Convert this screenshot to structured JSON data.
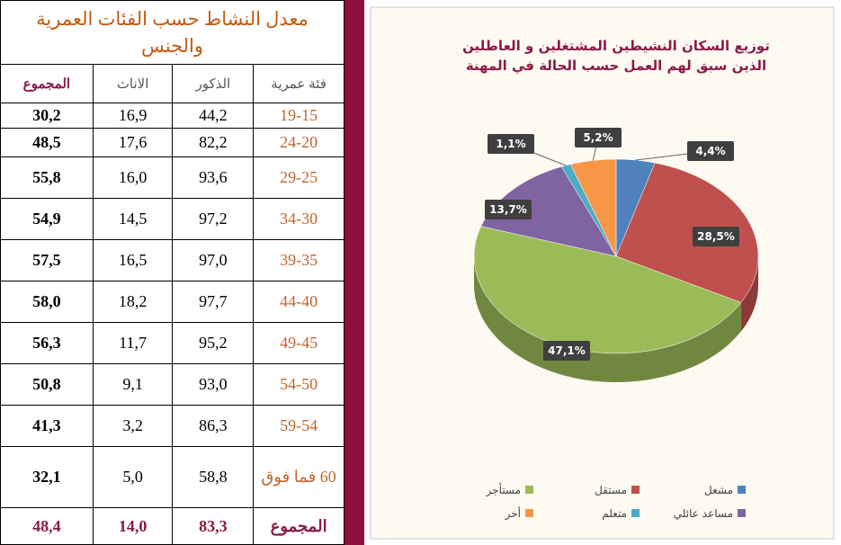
{
  "table": {
    "title": "معدل النشاط حسب الفئات العمرية والجنس",
    "headers": [
      "فئة عمرية",
      "الذكور",
      "الاناث",
      "المجموع"
    ],
    "rows": [
      [
        "19-15",
        "44,2",
        "16,9",
        "30,2"
      ],
      [
        "24-20",
        "82,2",
        "17,6",
        "48,5"
      ],
      [
        "29-25",
        "93,6",
        "16,0",
        "55,8"
      ],
      [
        "34-30",
        "97,2",
        "14,5",
        "54,9"
      ],
      [
        "39-35",
        "97,0",
        "16,5",
        "57,5"
      ],
      [
        "44-40",
        "97,7",
        "18,2",
        "58,0"
      ],
      [
        "49-45",
        "95,2",
        "11,7",
        "56,3"
      ],
      [
        "54-50",
        "93,0",
        "9,1",
        "50,8"
      ],
      [
        "59-54",
        "86,3",
        "3,2",
        "41,3"
      ],
      [
        "60 فما فوق",
        "58,8",
        "5,0",
        "32,1"
      ]
    ],
    "total": [
      "المجموع",
      "83,3",
      "14,0",
      "48,4"
    ]
  },
  "chart_data": {
    "type": "pie",
    "title": [
      "توزيع السكان النشيطين المشتغلين و العاطلين",
      "الذين سبق لهم العمل حسب الحالة في المهنة"
    ],
    "categories": [
      "مشغل",
      "مستقل",
      "مستأجر",
      "مساعد عائلي",
      "متعلم",
      "أخر"
    ],
    "values": [
      4.4,
      28.5,
      47.1,
      13.7,
      1.1,
      5.2
    ],
    "value_labels": [
      "4,4%",
      "28,5%",
      "47,1%",
      "13,7%",
      "1,1%",
      "5,2%"
    ],
    "colors": [
      "#4f81bd",
      "#c0504d",
      "#9bbb59",
      "#8064a2",
      "#4bacc6",
      "#f79646"
    ]
  }
}
